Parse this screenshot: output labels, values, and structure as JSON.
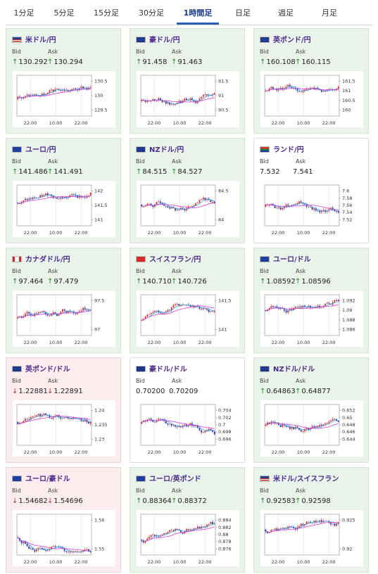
{
  "tabs": [
    {
      "label": "1分足"
    },
    {
      "label": "5分足"
    },
    {
      "label": "15分足"
    },
    {
      "label": "30分足"
    },
    {
      "label": "1時間足",
      "active": true
    },
    {
      "label": "日足"
    },
    {
      "label": "週足"
    },
    {
      "label": "月足"
    }
  ],
  "bid_label": "Bid",
  "ask_label": "Ask",
  "colors": {
    "up": "#1d8f2e",
    "down": "#c42a2a",
    "candle_up": "#e03030",
    "candle_down": "#2a3fa8",
    "ma_short": "#3aa0e0",
    "ma_long": "#d040d0"
  },
  "pairs": [
    {
      "name": "米ドル/円",
      "flag": "us",
      "dir": "up",
      "bid": "130.292",
      "ask": "130.294",
      "x_labels": [
        "22:00",
        "10:00",
        "22:00"
      ],
      "y_labels": [
        "130.5",
        "130",
        "129.5"
      ]
    },
    {
      "name": "豪ドル/円",
      "flag": "au",
      "dir": "up",
      "bid": "91.458",
      "ask": "91.463",
      "x_labels": [
        "22:00",
        "10:00",
        "22:00"
      ],
      "y_labels": [
        "91.5",
        "91",
        "90.5"
      ]
    },
    {
      "name": "英ポンド/円",
      "flag": "gb",
      "dir": "up",
      "bid": "160.108",
      "ask": "160.115",
      "x_labels": [
        "22:00",
        "10:00",
        "22:00"
      ],
      "y_labels": [
        "161.5",
        "161",
        "160.5",
        "160"
      ]
    },
    {
      "name": "ユーロ/円",
      "flag": "eu",
      "dir": "up",
      "bid": "141.486",
      "ask": "141.491",
      "x_labels": [
        "22:00",
        "10:00",
        "22:00"
      ],
      "y_labels": [
        "142",
        "141.5",
        "141"
      ]
    },
    {
      "name": "NZドル/円",
      "flag": "nz",
      "dir": "up",
      "bid": "84.515",
      "ask": "84.527",
      "x_labels": [
        "22:00",
        "10:00",
        "22:00"
      ],
      "y_labels": [
        "84.5",
        "84"
      ]
    },
    {
      "name": "ランド/円",
      "flag": "za",
      "dir": "flat",
      "bid": "7.532",
      "ask": "7.541",
      "x_labels": [
        "22:00",
        "10:00",
        "22:00"
      ],
      "y_labels": [
        "7.6",
        "7.58",
        "7.56",
        "7.54",
        "7.52"
      ]
    },
    {
      "name": "カナダドル/円",
      "flag": "ca",
      "dir": "up",
      "bid": "97.464",
      "ask": "97.479",
      "x_labels": [
        "22:00",
        "10:00",
        "22:00"
      ],
      "y_labels": [
        "97.5",
        "97"
      ]
    },
    {
      "name": "スイスフラン/円",
      "flag": "ch",
      "dir": "up",
      "bid": "140.710",
      "ask": "140.726",
      "x_labels": [
        "22:00",
        "10:00",
        "22:00"
      ],
      "y_labels": [
        "141.5",
        "141"
      ]
    },
    {
      "name": "ユーロ/ドル",
      "flag": "eu",
      "dir": "up",
      "bid": "1.08592",
      "ask": "1.08596",
      "x_labels": [
        "22:00",
        "10:00",
        "22:00"
      ],
      "y_labels": [
        "1.092",
        "1.09",
        "1.088",
        "1.086"
      ]
    },
    {
      "name": "英ポンド/ドル",
      "flag": "gb",
      "dir": "down",
      "bid": "1.22881",
      "ask": "1.22891",
      "x_labels": [
        "22:00",
        "10:00",
        "22:00"
      ],
      "y_labels": [
        "1.24",
        "1.235",
        "1.23"
      ]
    },
    {
      "name": "豪ドル/ドル",
      "flag": "au",
      "dir": "flat",
      "bid": "0.70200",
      "ask": "0.70209",
      "x_labels": [
        "22:00",
        "10:00",
        "22:00"
      ],
      "y_labels": [
        "0.704",
        "0.702",
        "0.7",
        "0.698",
        "0.696"
      ]
    },
    {
      "name": "NZドル/ドル",
      "flag": "nz",
      "dir": "up",
      "bid": "0.64863",
      "ask": "0.64877",
      "x_labels": [
        "22:00",
        "10:00",
        "22:00"
      ],
      "y_labels": [
        "0.652",
        "0.65",
        "0.648",
        "0.646",
        "0.644"
      ]
    },
    {
      "name": "ユーロ/豪ドル",
      "flag": "eu",
      "dir": "down",
      "bid": "1.54682",
      "ask": "1.54696",
      "x_labels": [
        "22:00",
        "10:00",
        "22:00"
      ],
      "y_labels": [
        "1.56",
        "1.55"
      ]
    },
    {
      "name": "ユーロ/英ポンド",
      "flag": "eu",
      "dir": "up",
      "bid": "0.88364",
      "ask": "0.88372",
      "x_labels": [
        "22:00",
        "10:00",
        "22:00"
      ],
      "y_labels": [
        "0.884",
        "0.882",
        "0.88",
        "0.878",
        "0.876"
      ]
    },
    {
      "name": "米ドル/スイスフラン",
      "flag": "us",
      "dir": "up",
      "bid": "0.92583",
      "ask": "0.92598",
      "x_labels": [
        "22:00",
        "10:00",
        "22:00"
      ],
      "y_labels": [
        "0.925",
        "0.92"
      ]
    }
  ]
}
